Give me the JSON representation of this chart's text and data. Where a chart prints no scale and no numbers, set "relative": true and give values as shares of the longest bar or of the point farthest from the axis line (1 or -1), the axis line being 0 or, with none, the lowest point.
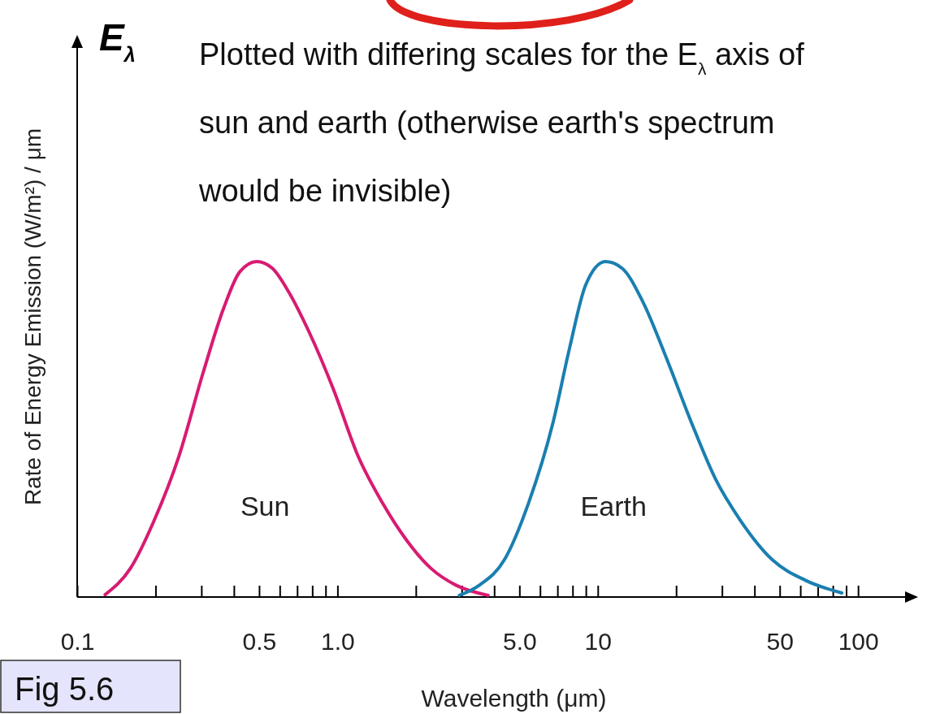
{
  "chart_data": {
    "type": "line",
    "relative": true,
    "log": "x",
    "xlabel": "Wavelength (μm)",
    "ylabel": "Rate of Energy Emission (W/m²) / μm",
    "xlim": [
      0.1,
      170
    ],
    "xticks": [
      {
        "value": 0.1,
        "label": "0.1"
      },
      {
        "value": 0.2,
        "label": null
      },
      {
        "value": 0.3,
        "label": null
      },
      {
        "value": 0.4,
        "label": null
      },
      {
        "value": 0.5,
        "label": "0.5"
      },
      {
        "value": 0.6,
        "label": null
      },
      {
        "value": 0.7,
        "label": null
      },
      {
        "value": 0.8,
        "label": null
      },
      {
        "value": 0.9,
        "label": null
      },
      {
        "value": 1,
        "label": "1.0"
      },
      {
        "value": 2,
        "label": null
      },
      {
        "value": 3,
        "label": null
      },
      {
        "value": 4,
        "label": null
      },
      {
        "value": 5,
        "label": "5.0"
      },
      {
        "value": 6,
        "label": null
      },
      {
        "value": 7,
        "label": null
      },
      {
        "value": 8,
        "label": null
      },
      {
        "value": 9,
        "label": null
      },
      {
        "value": 10,
        "label": "10"
      },
      {
        "value": 20,
        "label": null
      },
      {
        "value": 30,
        "label": null
      },
      {
        "value": 40,
        "label": null
      },
      {
        "value": 50,
        "label": "50"
      },
      {
        "value": 60,
        "label": null
      },
      {
        "value": 70,
        "label": null
      },
      {
        "value": 80,
        "label": null
      },
      {
        "value": 90,
        "label": null
      },
      {
        "value": 100,
        "label": "100"
      }
    ],
    "series": [
      {
        "name": "Sun",
        "color": "#d81b72",
        "x": [
          0.128,
          0.16,
          0.198,
          0.246,
          0.305,
          0.365,
          0.422,
          0.49,
          0.562,
          0.649,
          0.778,
          0.964,
          1.2,
          1.49,
          1.84,
          2.29,
          2.84,
          3.79
        ],
        "values": [
          0.007,
          0.085,
          0.23,
          0.42,
          0.67,
          0.86,
          0.97,
          1,
          0.98,
          0.91,
          0.79,
          0.62,
          0.42,
          0.28,
          0.17,
          0.085,
          0.036,
          0.005
        ]
      },
      {
        "name": "Earth",
        "color": "#1a7fb0",
        "x": [
          2.94,
          3.52,
          4.37,
          5.42,
          6.73,
          7.78,
          8.98,
          10.7,
          12.4,
          14.9,
          18.4,
          22.9,
          28.4,
          35.2,
          47.0,
          62.7,
          86.6
        ],
        "values": [
          0.005,
          0.036,
          0.11,
          0.28,
          0.52,
          0.74,
          0.93,
          1,
          0.98,
          0.88,
          0.71,
          0.52,
          0.35,
          0.23,
          0.11,
          0.05,
          0.012
        ]
      }
    ],
    "annotations": [
      "E$_{λ}$",
      "Plotted with differing scales for the E$_{λ}$ axis of sun and earth (otherwise earth's spectrum would be invisible)",
      "Fig 5.6"
    ]
  }
}
